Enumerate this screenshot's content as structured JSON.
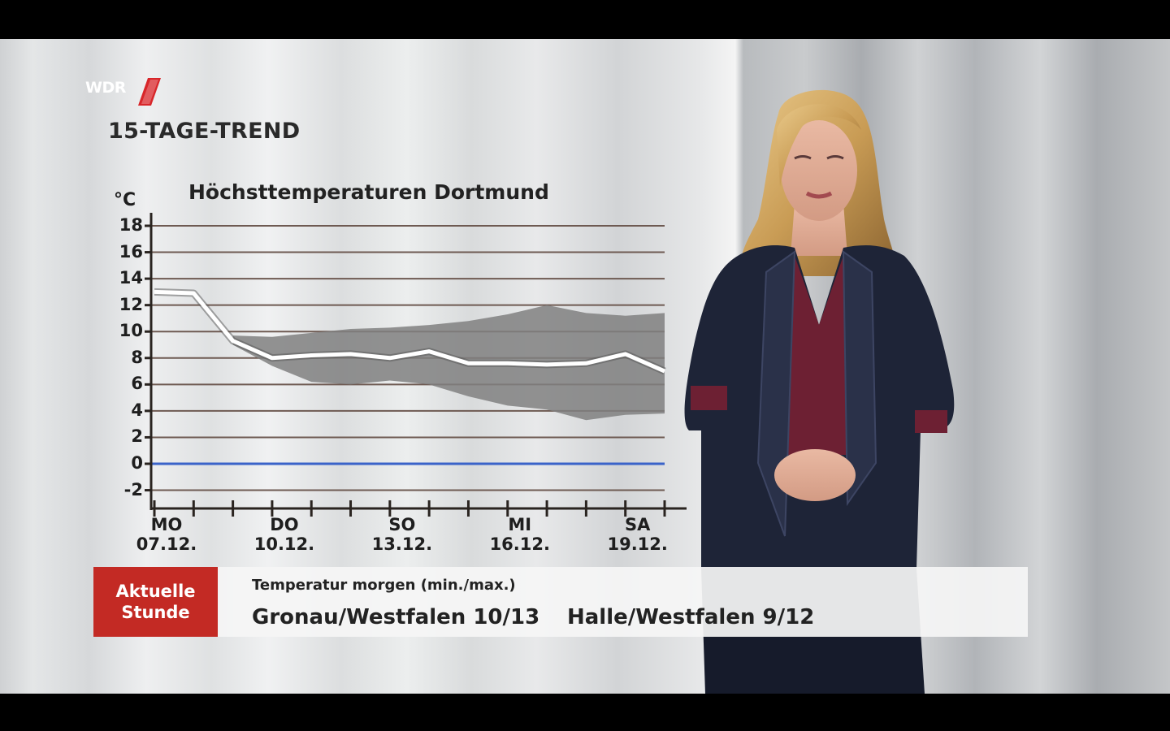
{
  "broadcast": {
    "logo_text": "WDR",
    "segment_title": "15-TAGE-TREND"
  },
  "chart_data": {
    "type": "line",
    "title": "Höchsttemperaturen Dortmund",
    "ylabel": "°C",
    "ylim": [
      -3,
      19
    ],
    "yticks": [
      18,
      16,
      14,
      12,
      10,
      8,
      6,
      4,
      2,
      0,
      -2
    ],
    "x_labels": [
      {
        "day": "MO",
        "date": "07.12.",
        "index": 0
      },
      {
        "day": "DO",
        "date": "10.12.",
        "index": 3
      },
      {
        "day": "SO",
        "date": "13.12.",
        "index": 6
      },
      {
        "day": "MI",
        "date": "16.12.",
        "index": 9
      },
      {
        "day": "SA",
        "date": "19.12.",
        "index": 12
      }
    ],
    "series": [
      {
        "values": [
          13,
          12.9,
          9.3,
          8,
          8.2,
          8.3,
          8,
          8.5,
          7.6,
          7.6,
          7.5,
          7.6,
          8.3,
          7
        ]
      }
    ],
    "band": {
      "upper": [
        null,
        null,
        9.7,
        9.6,
        9.9,
        10.2,
        10.3,
        10.5,
        10.8,
        11.3,
        12,
        11.4,
        11.2,
        11.4
      ],
      "lower": [
        null,
        null,
        9.0,
        7.4,
        6.2,
        6.0,
        6.3,
        6.0,
        5.1,
        4.4,
        4.1,
        3.3,
        3.7,
        3.8
      ]
    },
    "zero_line_color": "#3a63c9",
    "line_color": "#ffffff",
    "band_color": "#808080"
  },
  "ticker": {
    "brand_line1": "Aktuelle",
    "brand_line2": "Stunde",
    "heading": "Temperatur morgen (min./max.)",
    "items": [
      "Gronau/Westfalen 10/13",
      "Halle/Westfalen 9/12"
    ],
    "brand_color": "#c32a24"
  }
}
